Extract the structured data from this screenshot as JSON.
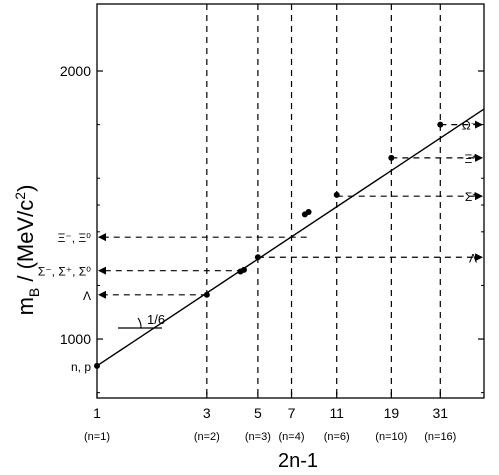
{
  "chart_data": {
    "type": "line",
    "title": "",
    "xlabel": "2n-1",
    "ylabel_main": "m",
    "ylabel_sub": "B",
    "ylabel_rest": " / (MeV/c",
    "ylabel_sup": "2",
    "ylabel_close": ")",
    "x_scale": "log",
    "xlim": [
      1,
      48
    ],
    "ylim": [
      780,
      2250
    ],
    "y_ticks": [
      {
        "value": 1000,
        "label": "1000"
      },
      {
        "value": 2000,
        "label": "2000"
      }
    ],
    "y_minor_ticks": [
      1500,
      800,
      1200,
      1400,
      1600,
      1800
    ],
    "x_ticks": [
      {
        "value": 1,
        "label": "1",
        "sublabel": "(n=1)"
      },
      {
        "value": 3,
        "label": "3",
        "sublabel": "(n=2)"
      },
      {
        "value": 5,
        "label": "5",
        "sublabel": "(n=3)"
      },
      {
        "value": 7,
        "label": "7",
        "sublabel": "(n=4)"
      },
      {
        "value": 11,
        "label": "11",
        "sublabel": "(n=6)"
      },
      {
        "value": 19,
        "label": "19",
        "sublabel": "(n=10)"
      },
      {
        "value": 31,
        "label": "31",
        "sublabel": "(n=16)"
      }
    ],
    "fit_line": {
      "x": [
        1,
        48
      ],
      "y": [
        900,
        1858
      ]
    },
    "slope_label": "1/6",
    "points": [
      {
        "x": 1,
        "y": 900
      },
      {
        "x": 3,
        "y": 1165
      },
      {
        "x": 4.2,
        "y": 1252
      },
      {
        "x": 4.35,
        "y": 1258
      },
      {
        "x": 5,
        "y": 1305
      },
      {
        "x": 8.0,
        "y": 1465
      },
      {
        "x": 8.3,
        "y": 1474
      },
      {
        "x": 11,
        "y": 1538
      },
      {
        "x": 19,
        "y": 1676
      },
      {
        "x": 31,
        "y": 1800
      }
    ],
    "dashed_verticals": [
      3,
      5,
      7,
      11,
      19,
      31
    ],
    "left_labels": [
      {
        "label": "n, p",
        "y": 900
      },
      {
        "label": "Λ",
        "y": 1165
      },
      {
        "label": "Σ⁻, Σ⁺, Σ⁰",
        "y": 1255
      },
      {
        "label": "Ξ⁻, Ξ⁰",
        "y": 1380
      }
    ],
    "left_arrows": [
      {
        "from_x": 3,
        "y": 1165
      },
      {
        "from_x": 4.3,
        "y": 1255
      },
      {
        "from_x": 8.15,
        "y": 1380
      }
    ],
    "right_labels": [
      {
        "label": "Λ",
        "y": 1305
      },
      {
        "label": "Σ*",
        "y": 1533
      },
      {
        "label": "Ξ*",
        "y": 1676
      },
      {
        "label": "Ω⁻",
        "y": 1800
      }
    ],
    "right_arrows": [
      {
        "from_x": 5,
        "y": 1305
      },
      {
        "from_x": 11,
        "y": 1533
      },
      {
        "from_x": 19,
        "y": 1676
      },
      {
        "from_x": 31,
        "y": 1800
      }
    ]
  }
}
